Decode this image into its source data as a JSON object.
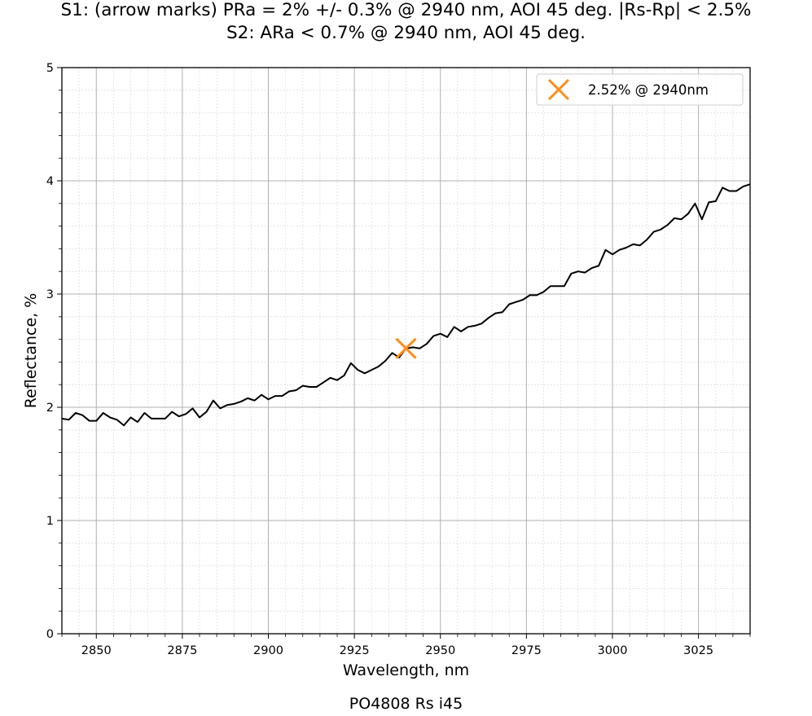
{
  "chart_data": {
    "type": "line",
    "title": "S1: (arrow marks) PRa = 2% +/- 0.3% @ 2940 nm, AOI 45 deg. |Rs-Rp| < 2.5%",
    "subtitle": "S2: ARa < 0.7% @ 2940 nm, AOI 45 deg.",
    "xlabel": "Wavelength, nm",
    "ylabel": "Reflectance, %",
    "caption": "PO4808 Rs i45",
    "xlim": [
      2840,
      3040
    ],
    "ylim": [
      0,
      5
    ],
    "xticks": [
      2850,
      2875,
      2900,
      2925,
      2950,
      2975,
      3000,
      3025
    ],
    "yticks": [
      0,
      1,
      2,
      3,
      4,
      5
    ],
    "grid": true,
    "minor_grid": true,
    "legend_position": "top-right",
    "series": [
      {
        "color": "#000000",
        "points": [
          [
            2840,
            1.9
          ],
          [
            2842,
            1.89
          ],
          [
            2844,
            1.95
          ],
          [
            2846,
            1.93
          ],
          [
            2848,
            1.88
          ],
          [
            2850,
            1.88
          ],
          [
            2852,
            1.95
          ],
          [
            2854,
            1.91
          ],
          [
            2856,
            1.89
          ],
          [
            2858,
            1.84
          ],
          [
            2860,
            1.91
          ],
          [
            2862,
            1.87
          ],
          [
            2864,
            1.95
          ],
          [
            2866,
            1.9
          ],
          [
            2868,
            1.9
          ],
          [
            2870,
            1.9
          ],
          [
            2872,
            1.96
          ],
          [
            2874,
            1.92
          ],
          [
            2876,
            1.94
          ],
          [
            2878,
            1.99
          ],
          [
            2880,
            1.91
          ],
          [
            2882,
            1.96
          ],
          [
            2884,
            2.06
          ],
          [
            2886,
            1.99
          ],
          [
            2888,
            2.02
          ],
          [
            2890,
            2.03
          ],
          [
            2892,
            2.05
          ],
          [
            2894,
            2.08
          ],
          [
            2896,
            2.06
          ],
          [
            2898,
            2.11
          ],
          [
            2900,
            2.07
          ],
          [
            2902,
            2.1
          ],
          [
            2904,
            2.1
          ],
          [
            2906,
            2.14
          ],
          [
            2908,
            2.15
          ],
          [
            2910,
            2.19
          ],
          [
            2912,
            2.18
          ],
          [
            2914,
            2.18
          ],
          [
            2916,
            2.22
          ],
          [
            2918,
            2.26
          ],
          [
            2920,
            2.24
          ],
          [
            2922,
            2.28
          ],
          [
            2924,
            2.39
          ],
          [
            2926,
            2.33
          ],
          [
            2928,
            2.3
          ],
          [
            2930,
            2.33
          ],
          [
            2932,
            2.36
          ],
          [
            2934,
            2.41
          ],
          [
            2936,
            2.48
          ],
          [
            2938,
            2.44
          ],
          [
            2940,
            2.52
          ],
          [
            2942,
            2.53
          ],
          [
            2944,
            2.52
          ],
          [
            2946,
            2.56
          ],
          [
            2948,
            2.63
          ],
          [
            2950,
            2.65
          ],
          [
            2952,
            2.62
          ],
          [
            2954,
            2.71
          ],
          [
            2956,
            2.67
          ],
          [
            2958,
            2.71
          ],
          [
            2960,
            2.72
          ],
          [
            2962,
            2.74
          ],
          [
            2964,
            2.79
          ],
          [
            2966,
            2.83
          ],
          [
            2968,
            2.84
          ],
          [
            2970,
            2.91
          ],
          [
            2972,
            2.93
          ],
          [
            2974,
            2.95
          ],
          [
            2976,
            2.99
          ],
          [
            2978,
            2.99
          ],
          [
            2980,
            3.02
          ],
          [
            2982,
            3.07
          ],
          [
            2984,
            3.07
          ],
          [
            2986,
            3.07
          ],
          [
            2988,
            3.18
          ],
          [
            2990,
            3.2
          ],
          [
            2992,
            3.19
          ],
          [
            2994,
            3.23
          ],
          [
            2996,
            3.25
          ],
          [
            2998,
            3.39
          ],
          [
            3000,
            3.35
          ],
          [
            3002,
            3.39
          ],
          [
            3004,
            3.41
          ],
          [
            3006,
            3.44
          ],
          [
            3008,
            3.43
          ],
          [
            3010,
            3.48
          ],
          [
            3012,
            3.55
          ],
          [
            3014,
            3.57
          ],
          [
            3016,
            3.61
          ],
          [
            3018,
            3.67
          ],
          [
            3020,
            3.66
          ],
          [
            3022,
            3.71
          ],
          [
            3024,
            3.8
          ],
          [
            3026,
            3.66
          ],
          [
            3028,
            3.81
          ],
          [
            3030,
            3.82
          ],
          [
            3032,
            3.94
          ],
          [
            3034,
            3.91
          ],
          [
            3036,
            3.91
          ],
          [
            3038,
            3.95
          ],
          [
            3040,
            3.97
          ]
        ]
      }
    ],
    "marker": {
      "x": 2940,
      "y": 2.52,
      "symbol": "x",
      "color": "#ff8c1a",
      "legend_label": "2.52% @ 2940nm"
    }
  }
}
